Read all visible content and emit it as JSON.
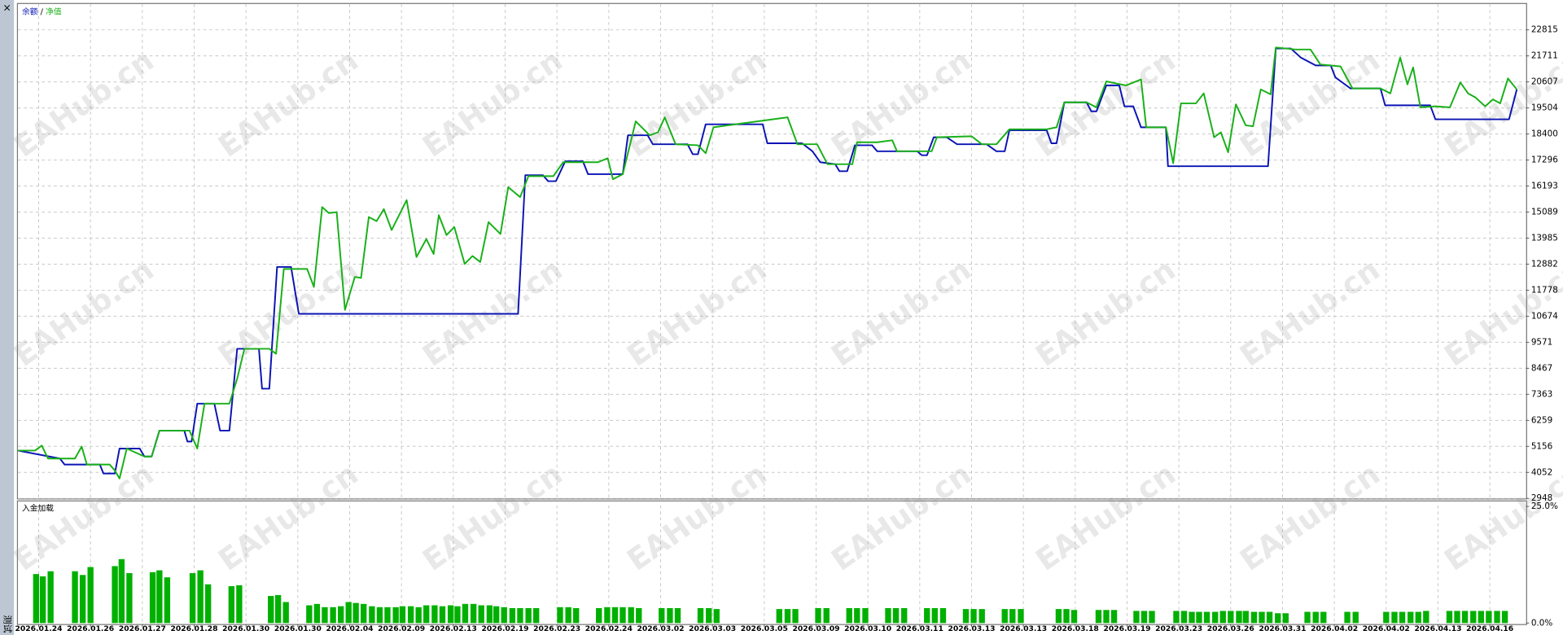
{
  "sidebar": {
    "close": "×",
    "label": "测试"
  },
  "chart_data": [
    {
      "type": "line",
      "legend_separator": "/",
      "watermark": "EAHub.cn",
      "xlim": [
        0,
        291
      ],
      "ylim": [
        2948,
        23870
      ],
      "yticks": [
        2948,
        4052,
        5156,
        6259,
        7363,
        8467,
        9571,
        10674,
        11778,
        12882,
        13985,
        15089,
        16193,
        17296,
        18400,
        19504,
        20607,
        21711,
        22815
      ],
      "grid": true,
      "series": [
        {
          "name": "余额",
          "color": "#0a14b4",
          "x": [
            0,
            8.1,
            9.0,
            15.8,
            16.5,
            18.7,
            19.6,
            23.5,
            24.4,
            25.8,
            27.3,
            32.1,
            32.7,
            33.5,
            34.6,
            37.9,
            39.0,
            40.8,
            42.3,
            46.5,
            47.1,
            48.5,
            50.0,
            52.7,
            54.2,
            96.5,
            97.9,
            101.3,
            102.3,
            103.8,
            105.6,
            109.0,
            110.0,
            116.7,
            117.7,
            121.5,
            122.5,
            129.2,
            130.2,
            131.2,
            132.7,
            143.7,
            144.6,
            151.3,
            153.3,
            154.8,
            157.7,
            158.5,
            160.0,
            161.5,
            164.8,
            165.8,
            173.5,
            174.4,
            175.4,
            176.7,
            179.2,
            181.2,
            186.9,
            188.8,
            190.4,
            191.3,
            198.5,
            199.4,
            200.4,
            201.9,
            206.2,
            207.1,
            208.1,
            210.0,
            212.5,
            213.5,
            215.2,
            216.7,
            221.5,
            221.9,
            241.2,
            242.7,
            245.6,
            247.5,
            250.4,
            253.3,
            254.2,
            257.1,
            262.9,
            263.8,
            272.5,
            273.5,
            287.7,
            289.2
          ],
          "values": [
            4978,
            4640,
            4386,
            4386,
            4006,
            4006,
            5063,
            5063,
            4725,
            4725,
            5824,
            5824,
            5359,
            5359,
            6967,
            6967,
            5824,
            5824,
            9293,
            9293,
            7601,
            7601,
            12762,
            12762,
            10774,
            10774,
            16653,
            16653,
            16399,
            16399,
            17245,
            17245,
            16696,
            16696,
            18345,
            18345,
            17965,
            17965,
            17542,
            17542,
            18811,
            18811,
            18007,
            18007,
            17668,
            17203,
            17119,
            16822,
            16822,
            17922,
            17922,
            17668,
            17668,
            17499,
            17499,
            18261,
            18261,
            17965,
            17965,
            17668,
            17668,
            18557,
            18557,
            18007,
            18007,
            19741,
            19741,
            19360,
            19360,
            20460,
            20460,
            19572,
            19572,
            18684,
            18684,
            17034,
            17034,
            22025,
            22025,
            21645,
            21306,
            21306,
            20799,
            20333,
            20333,
            19614,
            19614,
            19022,
            19022,
            20291
          ]
        },
        {
          "name": "净值",
          "color": "#18b018",
          "x": [
            0,
            3.3,
            4.6,
            5.8,
            11.0,
            12.3,
            13.3,
            17.7,
            18.7,
            19.6,
            21.0,
            24.4,
            25.8,
            27.3,
            33.1,
            34.6,
            36.0,
            40.8,
            42.3,
            43.7,
            48.5,
            49.8,
            51.3,
            55.8,
            57.1,
            58.7,
            60.0,
            61.5,
            63.1,
            65.0,
            66.2,
            67.7,
            69.2,
            70.6,
            72.1,
            75.0,
            76.9,
            78.8,
            80.2,
            81.2,
            82.7,
            84.2,
            86.2,
            87.7,
            89.2,
            90.8,
            93.1,
            94.6,
            96.9,
            98.5,
            103.3,
            105.2,
            111.9,
            113.8,
            114.8,
            116.7,
            119.2,
            121.9,
            123.5,
            124.8,
            126.9,
            131.2,
            132.7,
            134.2,
            148.5,
            150.4,
            154.2,
            156.2,
            161.0,
            161.9,
            165.8,
            168.7,
            169.6,
            176.3,
            177.3,
            184.0,
            186.0,
            188.8,
            191.3,
            198.5,
            200.4,
            201.9,
            206.2,
            208.1,
            210.0,
            213.8,
            216.7,
            217.7,
            221.5,
            222.9,
            224.4,
            227.3,
            228.8,
            230.8,
            232.1,
            233.5,
            235.0,
            236.9,
            238.3,
            239.8,
            241.7,
            242.7,
            246.5,
            249.4,
            251.3,
            255.2,
            257.5,
            262.9,
            264.8,
            266.7,
            268.1,
            269.2,
            270.6,
            273.5,
            276.3,
            278.3,
            279.8,
            281.2,
            283.1,
            284.6,
            286.0,
            287.5,
            289.2
          ],
          "values": [
            4978,
            4978,
            5190,
            4640,
            4640,
            5148,
            4386,
            4386,
            4132,
            3794,
            5063,
            4725,
            4725,
            5824,
            5824,
            5063,
            6967,
            6967,
            8024,
            9293,
            9293,
            9082,
            12677,
            12677,
            11916,
            15300,
            15046,
            15088,
            10943,
            12339,
            12296,
            14877,
            14707,
            15215,
            14327,
            15596,
            13185,
            13946,
            13312,
            14961,
            14115,
            14454,
            12889,
            13227,
            12973,
            14665,
            14158,
            16146,
            15723,
            16611,
            16611,
            17203,
            17203,
            17372,
            16484,
            16696,
            18937,
            18345,
            18472,
            19107,
            17965,
            17922,
            17584,
            18684,
            19107,
            17965,
            17965,
            17119,
            17119,
            18049,
            18049,
            18134,
            17668,
            17668,
            18261,
            18303,
            17965,
            17965,
            18599,
            18599,
            18684,
            19741,
            19741,
            19530,
            20629,
            20460,
            20714,
            18684,
            18684,
            17161,
            19699,
            19699,
            20122,
            18261,
            18472,
            17626,
            19657,
            18768,
            18726,
            20291,
            20080,
            22068,
            21983,
            21983,
            21349,
            21264,
            20333,
            20333,
            20122,
            21645,
            20503,
            21222,
            19530,
            19572,
            19530,
            20587,
            20122,
            19953,
            19572,
            19868,
            19699,
            20756,
            20291
          ]
        }
      ]
    },
    {
      "type": "bar",
      "title": "入金加载",
      "color": "#00b000",
      "xlim": [
        0,
        291
      ],
      "ylim": [
        0,
        25
      ],
      "yticks": [
        {
          "value": 0,
          "label": "0.0%"
        },
        {
          "value": 25,
          "label": "25.0%"
        }
      ],
      "grid": true,
      "xticks": [
        {
          "value": 4,
          "label": "2026.01.24"
        },
        {
          "value": 14,
          "label": "2026.01.26"
        },
        {
          "value": 24,
          "label": "2026.01.27"
        },
        {
          "value": 34,
          "label": "2026.01.28"
        },
        {
          "value": 44,
          "label": "2026.01.30"
        },
        {
          "value": 54,
          "label": "2026.01.30"
        },
        {
          "value": 64,
          "label": "2026.02.04"
        },
        {
          "value": 74,
          "label": "2026.02.09"
        },
        {
          "value": 84,
          "label": "2026.02.13"
        },
        {
          "value": 94,
          "label": "2026.02.19"
        },
        {
          "value": 104,
          "label": "2026.02.23"
        },
        {
          "value": 114,
          "label": "2026.02.24"
        },
        {
          "value": 124,
          "label": "2026.03.02"
        },
        {
          "value": 134,
          "label": "2026.03.03"
        },
        {
          "value": 144,
          "label": "2026.03.05"
        },
        {
          "value": 154,
          "label": "2026.03.09"
        },
        {
          "value": 164,
          "label": "2026.03.10"
        },
        {
          "value": 174,
          "label": "2026.03.11"
        },
        {
          "value": 184,
          "label": "2026.03.13"
        },
        {
          "value": 194,
          "label": "2026.03.13"
        },
        {
          "value": 204,
          "label": "2026.03.18"
        },
        {
          "value": 214,
          "label": "2026.03.19"
        },
        {
          "value": 224,
          "label": "2026.03.23"
        },
        {
          "value": 234,
          "label": "2026.03.26"
        },
        {
          "value": 244,
          "label": "2026.03.31"
        },
        {
          "value": 254,
          "label": "2026.04.02"
        },
        {
          "value": 264,
          "label": "2026.04.02"
        },
        {
          "value": 274,
          "label": "2026.04.13"
        },
        {
          "value": 284,
          "label": "2026.04.16"
        }
      ],
      "x": [
        3.5,
        4.8,
        6.3,
        11.0,
        12.5,
        14.0,
        18.7,
        20.0,
        21.5,
        26.0,
        27.3,
        28.8,
        33.7,
        35.2,
        36.7,
        41.2,
        42.7,
        48.8,
        50.2,
        51.7,
        56.2,
        57.7,
        59.2,
        60.8,
        62.3,
        63.8,
        65.2,
        66.7,
        68.3,
        69.8,
        71.3,
        72.9,
        74.2,
        75.8,
        77.3,
        78.8,
        80.4,
        81.9,
        83.5,
        84.8,
        86.3,
        87.9,
        89.4,
        91.0,
        92.3,
        93.8,
        95.4,
        96.9,
        98.5,
        100.0,
        104.6,
        106.2,
        107.7,
        112.1,
        113.7,
        115.2,
        116.7,
        118.3,
        119.8,
        124.2,
        125.8,
        127.3,
        131.7,
        133.3,
        134.8,
        146.9,
        148.5,
        150.0,
        154.4,
        156.0,
        160.4,
        161.9,
        163.5,
        167.9,
        169.4,
        171.0,
        175.4,
        176.9,
        178.5,
        182.9,
        184.4,
        186.0,
        190.4,
        191.9,
        193.5,
        200.8,
        202.3,
        203.8,
        208.5,
        210.0,
        211.5,
        215.8,
        217.3,
        218.8,
        223.5,
        225.0,
        226.5,
        227.9,
        229.4,
        231.0,
        232.5,
        234.0,
        235.6,
        236.9,
        238.5,
        240.0,
        241.5,
        243.1,
        244.6,
        248.8,
        250.4,
        251.9,
        256.5,
        258.1,
        264.0,
        265.6,
        267.1,
        268.7,
        270.2,
        271.7,
        276.2,
        277.7,
        279.2,
        280.8,
        282.3,
        283.8,
        285.4,
        286.9
      ],
      "values": [
        10.5,
        10.0,
        11.1,
        11.1,
        10.3,
        12.0,
        12.2,
        13.7,
        10.7,
        10.9,
        11.3,
        9.8,
        10.7,
        11.3,
        8.3,
        7.9,
        8.1,
        5.8,
        6.0,
        4.5,
        3.8,
        4.1,
        3.4,
        3.4,
        3.6,
        4.5,
        4.3,
        4.1,
        3.6,
        3.4,
        3.4,
        3.4,
        3.6,
        3.6,
        3.4,
        3.8,
        3.8,
        3.6,
        3.8,
        3.6,
        4.1,
        4.1,
        3.8,
        3.8,
        3.6,
        3.4,
        3.2,
        3.2,
        3.2,
        3.2,
        3.4,
        3.4,
        3.2,
        3.2,
        3.4,
        3.4,
        3.4,
        3.4,
        3.2,
        3.2,
        3.2,
        3.2,
        3.2,
        3.2,
        3.0,
        3.0,
        3.0,
        3.0,
        3.2,
        3.2,
        3.2,
        3.2,
        3.2,
        3.2,
        3.2,
        3.2,
        3.2,
        3.2,
        3.2,
        3.0,
        3.0,
        3.0,
        3.0,
        3.0,
        3.0,
        3.0,
        3.0,
        2.8,
        2.8,
        2.8,
        2.8,
        2.6,
        2.6,
        2.6,
        2.6,
        2.6,
        2.4,
        2.4,
        2.4,
        2.4,
        2.6,
        2.6,
        2.6,
        2.6,
        2.4,
        2.4,
        2.4,
        2.1,
        2.1,
        2.4,
        2.4,
        2.4,
        2.4,
        2.4,
        2.4,
        2.4,
        2.4,
        2.4,
        2.4,
        2.6,
        2.6,
        2.6,
        2.6,
        2.6,
        2.6,
        2.6,
        2.6,
        2.6
      ]
    }
  ]
}
